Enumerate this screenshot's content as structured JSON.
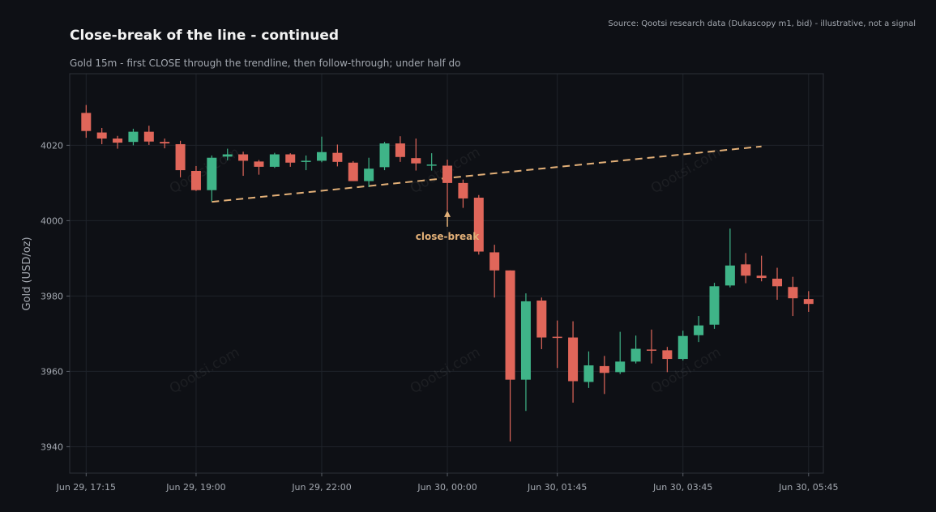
{
  "header": {
    "title": "Close-break of the line - continued",
    "subtitle": "Gold 15m - first CLOSE through the trendline, then follow-through; under half do",
    "source": "Source: Qootsi research data (Dukascopy m1, bid) - illustrative, not a signal"
  },
  "watermark": "Qootsi.com",
  "colors": {
    "background": "#0e1015",
    "up": "#3fb488",
    "down": "#e0665a",
    "trendline": "#e3b078",
    "annotation": "#e3b078",
    "grid": "#1f232a",
    "axis_text": "#a3a8b0"
  },
  "chart_data": {
    "type": "candlestick",
    "title": "Close-break of the line - continued",
    "ylabel": "Gold (USD/oz)",
    "xlabel": "",
    "ylim": [
      3933,
      4039
    ],
    "yticks": [
      3940,
      3960,
      3980,
      4000,
      4020
    ],
    "xticks": [
      {
        "index": 0,
        "label": "Jun 29, 17:15"
      },
      {
        "index": 7,
        "label": "Jun 29, 19:00"
      },
      {
        "index": 15,
        "label": "Jun 29, 22:00"
      },
      {
        "index": 23,
        "label": "Jun 30, 00:00"
      },
      {
        "index": 30,
        "label": "Jun 30, 01:45"
      },
      {
        "index": 38,
        "label": "Jun 30, 03:45"
      },
      {
        "index": 46,
        "label": "Jun 30, 05:45"
      }
    ],
    "grid": true,
    "candles": [
      {
        "o": 4028.6,
        "h": 4030.7,
        "l": 4022.0,
        "c": 4023.8
      },
      {
        "o": 4023.4,
        "h": 4024.6,
        "l": 4020.3,
        "c": 4021.8
      },
      {
        "o": 4021.8,
        "h": 4022.5,
        "l": 4019.1,
        "c": 4020.7
      },
      {
        "o": 4020.9,
        "h": 4024.4,
        "l": 4020.0,
        "c": 4023.6
      },
      {
        "o": 4023.6,
        "h": 4025.2,
        "l": 4020.1,
        "c": 4021.0
      },
      {
        "o": 4020.9,
        "h": 4021.8,
        "l": 4019.2,
        "c": 4020.5
      },
      {
        "o": 4020.3,
        "h": 4021.2,
        "l": 4011.5,
        "c": 4013.4
      },
      {
        "o": 4013.2,
        "h": 4014.5,
        "l": 4007.9,
        "c": 4008.1
      },
      {
        "o": 4008.1,
        "h": 4017.3,
        "l": 4005.1,
        "c": 4016.7
      },
      {
        "o": 4017.0,
        "h": 4019.1,
        "l": 4016.0,
        "c": 4017.6
      },
      {
        "o": 4017.6,
        "h": 4018.3,
        "l": 4011.9,
        "c": 4015.9
      },
      {
        "o": 4015.7,
        "h": 4016.1,
        "l": 4012.2,
        "c": 4014.3
      },
      {
        "o": 4014.3,
        "h": 4018.0,
        "l": 4014.0,
        "c": 4017.6
      },
      {
        "o": 4017.6,
        "h": 4017.9,
        "l": 4014.3,
        "c": 4015.4
      },
      {
        "o": 4015.6,
        "h": 4017.3,
        "l": 4013.4,
        "c": 4015.9
      },
      {
        "o": 4015.9,
        "h": 4022.3,
        "l": 4015.5,
        "c": 4018.2
      },
      {
        "o": 4018.0,
        "h": 4020.2,
        "l": 4014.4,
        "c": 4015.6
      },
      {
        "o": 4015.4,
        "h": 4015.8,
        "l": 4010.5,
        "c": 4010.5
      },
      {
        "o": 4010.5,
        "h": 4016.7,
        "l": 4008.9,
        "c": 4013.8
      },
      {
        "o": 4014.2,
        "h": 4020.9,
        "l": 4013.4,
        "c": 4020.5
      },
      {
        "o": 4020.5,
        "h": 4022.4,
        "l": 4015.6,
        "c": 4016.9
      },
      {
        "o": 4016.6,
        "h": 4021.8,
        "l": 4013.3,
        "c": 4015.2
      },
      {
        "o": 4014.9,
        "h": 4017.9,
        "l": 4013.3,
        "c": 4014.9
      },
      {
        "o": 4014.6,
        "h": 4016.2,
        "l": 4002.7,
        "c": 4010.0
      },
      {
        "o": 4010.0,
        "h": 4010.9,
        "l": 4003.4,
        "c": 4005.9
      },
      {
        "o": 4006.1,
        "h": 4006.8,
        "l": 3991.0,
        "c": 3991.8
      },
      {
        "o": 3991.6,
        "h": 3993.6,
        "l": 3979.6,
        "c": 3986.8
      },
      {
        "o": 3986.8,
        "h": 3986.8,
        "l": 3941.4,
        "c": 3957.8
      },
      {
        "o": 3957.8,
        "h": 3980.7,
        "l": 3949.5,
        "c": 3978.6
      },
      {
        "o": 3978.8,
        "h": 3979.6,
        "l": 3965.9,
        "c": 3969.0
      },
      {
        "o": 3969.2,
        "h": 3973.5,
        "l": 3960.9,
        "c": 3969.0
      },
      {
        "o": 3969.0,
        "h": 3973.3,
        "l": 3951.7,
        "c": 3957.4
      },
      {
        "o": 3957.2,
        "h": 3965.3,
        "l": 3955.6,
        "c": 3961.6
      },
      {
        "o": 3961.4,
        "h": 3964.1,
        "l": 3954.0,
        "c": 3959.6
      },
      {
        "o": 3959.8,
        "h": 3970.5,
        "l": 3959.3,
        "c": 3962.6
      },
      {
        "o": 3962.6,
        "h": 3969.5,
        "l": 3962.1,
        "c": 3966.0
      },
      {
        "o": 3965.8,
        "h": 3971.1,
        "l": 3962.1,
        "c": 3965.6
      },
      {
        "o": 3965.6,
        "h": 3966.5,
        "l": 3959.8,
        "c": 3963.3
      },
      {
        "o": 3963.3,
        "h": 3970.8,
        "l": 3962.9,
        "c": 3969.4
      },
      {
        "o": 3969.6,
        "h": 3974.7,
        "l": 3967.8,
        "c": 3972.2
      },
      {
        "o": 3972.4,
        "h": 3983.5,
        "l": 3971.3,
        "c": 3982.6
      },
      {
        "o": 3982.8,
        "h": 3997.9,
        "l": 3982.3,
        "c": 3988.1
      },
      {
        "o": 3988.4,
        "h": 3991.4,
        "l": 3983.4,
        "c": 3985.4
      },
      {
        "o": 3985.4,
        "h": 3990.7,
        "l": 3983.9,
        "c": 3984.8
      },
      {
        "o": 3984.6,
        "h": 3987.5,
        "l": 3979.0,
        "c": 3982.6
      },
      {
        "o": 3982.4,
        "h": 3985.1,
        "l": 3974.7,
        "c": 3979.4
      },
      {
        "o": 3979.2,
        "h": 3981.3,
        "l": 3975.8,
        "c": 3977.9
      }
    ],
    "trendline": {
      "from": {
        "index": 8,
        "y": 4005.0
      },
      "to": {
        "index": 43,
        "y": 4019.7
      }
    },
    "annotation": {
      "text": "close-break",
      "index": 23,
      "y": 4002.7
    }
  }
}
